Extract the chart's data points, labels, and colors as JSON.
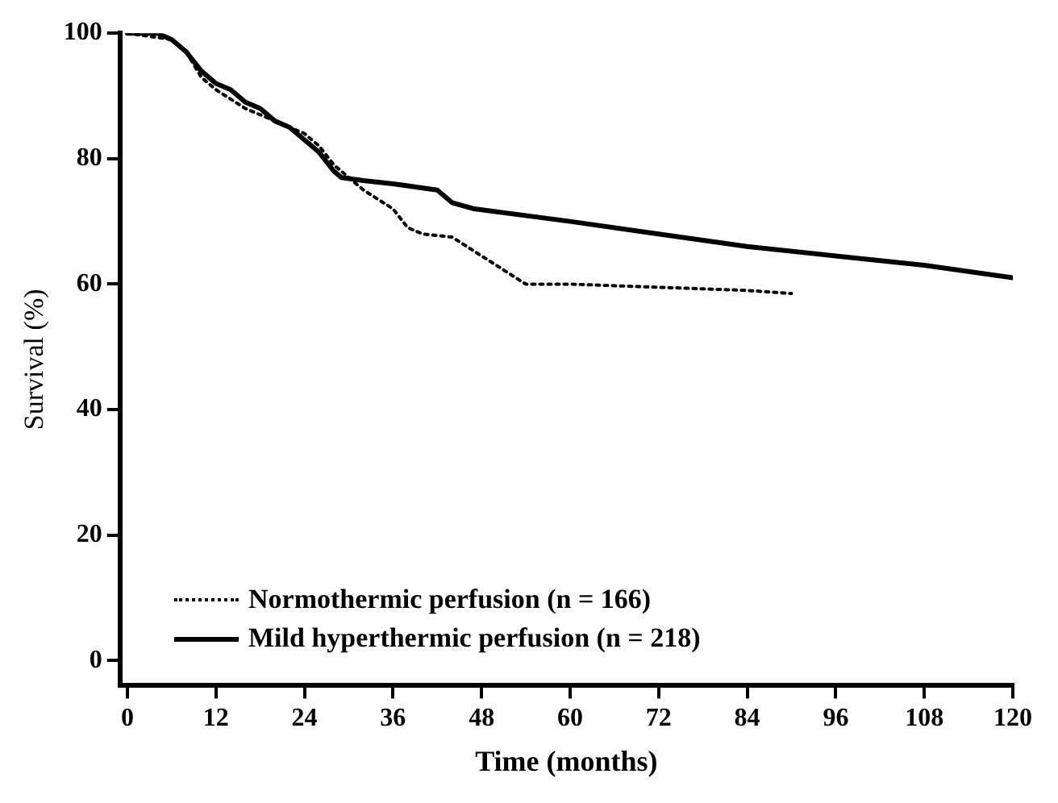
{
  "chart_data": {
    "type": "line",
    "xlabel": "Time (months)",
    "ylabel": "Survival (%)",
    "xlim": [
      -1,
      120
    ],
    "xticks": [
      0,
      12,
      24,
      36,
      48,
      60,
      72,
      84,
      96,
      108,
      120
    ],
    "ylim": [
      -4,
      100
    ],
    "yticks": [
      0,
      20,
      40,
      60,
      80,
      100
    ],
    "grid": false,
    "legend": "bottom left",
    "marker": "none",
    "series": [
      {
        "name": "Normothermic perfusion (n = 166)",
        "color": "#000000",
        "line_style": "dotted",
        "x": [
          0,
          6,
          8,
          10,
          12,
          16,
          20,
          24,
          26,
          28,
          30,
          32,
          36,
          38,
          40,
          44,
          46,
          50,
          54,
          60,
          72,
          84,
          90
        ],
        "values": [
          100,
          99,
          97,
          93,
          91,
          88,
          86,
          84,
          82,
          79,
          77,
          75,
          72,
          69,
          68,
          67.5,
          66,
          63,
          60,
          60,
          59.5,
          59,
          58.5
        ]
      },
      {
        "name": "Mild hyperthermic perfusion (n = 218)",
        "color": "#000000",
        "line_style": "solid",
        "x": [
          0,
          4,
          6,
          8,
          10,
          12,
          14,
          16,
          18,
          20,
          22,
          24,
          26,
          28,
          29,
          32,
          36,
          42,
          44,
          47,
          60,
          72,
          84,
          96,
          108,
          120
        ],
        "values": [
          100,
          100,
          99,
          97,
          94,
          92,
          91,
          89,
          88,
          86,
          85,
          83,
          81,
          78,
          77,
          76.5,
          76,
          75,
          73,
          72,
          70,
          68,
          66,
          64.5,
          63,
          61
        ]
      }
    ]
  }
}
